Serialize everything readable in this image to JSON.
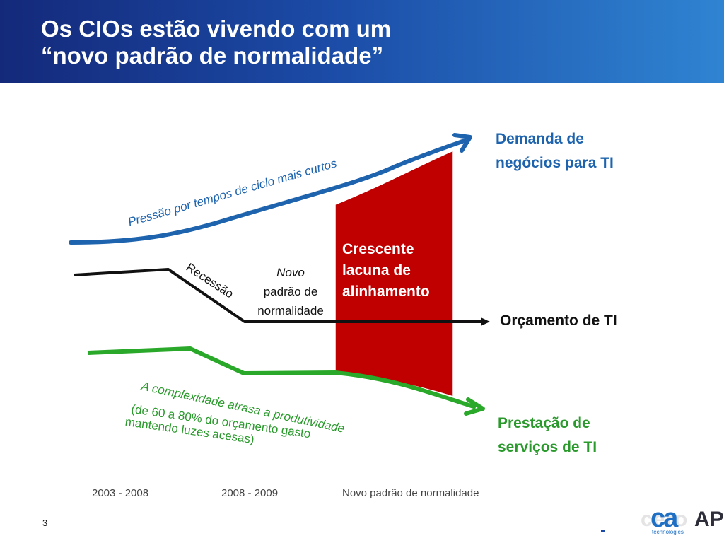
{
  "slide": {
    "title_lines": [
      "Os CIOs estão vivendo com um",
      "“novo padrão de normalidade”"
    ],
    "page_number": "3"
  },
  "diagram": {
    "demand": {
      "label_lines": [
        "Demanda de",
        "negócios para TI"
      ],
      "color": "#1d63ad"
    },
    "pressure_note": "Pressão por tempos de ciclo mais curtos",
    "recession_note": "Recessão",
    "new_normal_lines": [
      "Novo",
      "padrão de",
      "normalidade"
    ],
    "budget": {
      "label": "Orçamento de TI",
      "color": "#111111"
    },
    "gap": {
      "label_lines": [
        "Crescente",
        "lacuna de",
        "alinhamento"
      ],
      "color": "#c00000"
    },
    "services": {
      "label_lines": [
        "Prestação de",
        "serviços de TI"
      ],
      "color": "#2a9a2c"
    },
    "complexity_note": "A complexidade atrasa a produtividade",
    "budget_note_lines": [
      "(de 60 a 80% do orçamento gasto",
      "mantendo luzes acesas)"
    ],
    "periods": [
      "2003 - 2008",
      "2008 - 2009",
      "Novo padrão de normalidade"
    ]
  },
  "brand": {
    "ghost_text": "cero",
    "ghost_right": "AP",
    "logo_text": "ca",
    "logo_sub": "technologies",
    "color": "#1f6fc4"
  }
}
